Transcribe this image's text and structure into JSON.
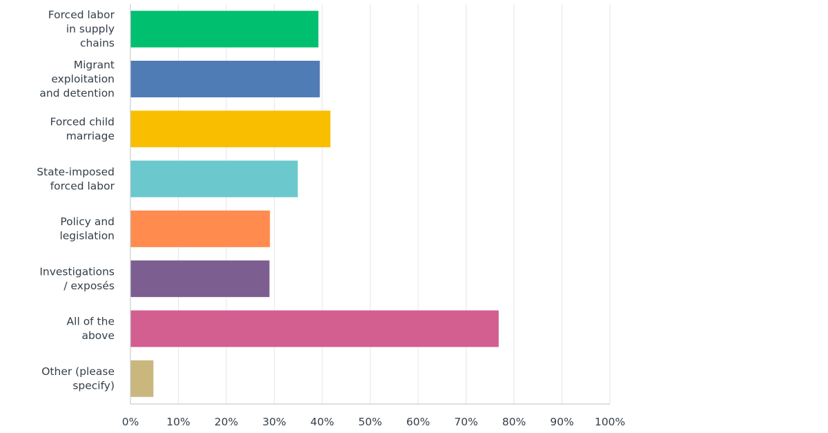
{
  "chart_data": {
    "type": "bar",
    "orientation": "horizontal",
    "categories": [
      [
        "Forced labor",
        "in supply",
        "chains"
      ],
      [
        "Migrant",
        "exploitation",
        "and detention"
      ],
      [
        "Forced child",
        "marriage"
      ],
      [
        "State-imposed",
        "forced labor"
      ],
      [
        "Policy and",
        "legislation"
      ],
      [
        "Investigations",
        "/ exposés"
      ],
      [
        "All of the",
        "above"
      ],
      [
        "Other (please",
        "specify)"
      ]
    ],
    "values": [
      39.2,
      39.5,
      41.7,
      34.9,
      29.1,
      29.0,
      76.8,
      4.8
    ],
    "colors": [
      "#00bf6f",
      "#507cb6",
      "#f9be00",
      "#6bc8cd",
      "#ff8b4f",
      "#7d5e90",
      "#d25f90",
      "#c9b77d"
    ],
    "xlim": [
      0,
      100
    ],
    "xticks": [
      0,
      10,
      20,
      30,
      40,
      50,
      60,
      70,
      80,
      90,
      100
    ],
    "xtick_labels": [
      "0%",
      "10%",
      "20%",
      "30%",
      "40%",
      "50%",
      "60%",
      "70%",
      "80%",
      "90%",
      "100%"
    ],
    "grid": true,
    "title": "",
    "xlabel": "",
    "ylabel": ""
  }
}
